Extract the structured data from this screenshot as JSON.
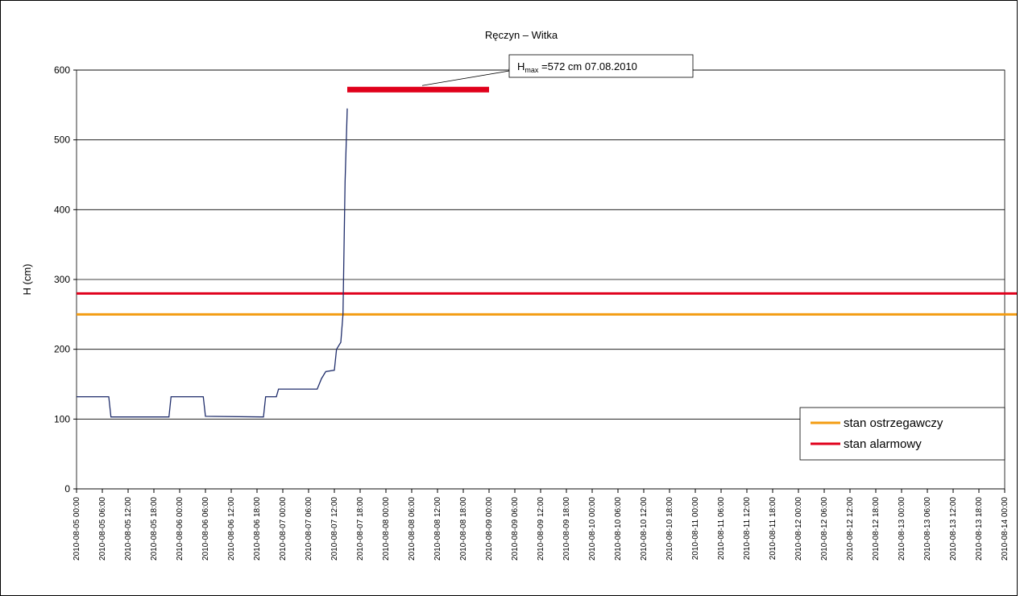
{
  "chart_data": {
    "type": "line",
    "title": "Ręczyn – Witka",
    "y_label": "H (cm)",
    "ylim": [
      0,
      600
    ],
    "yticks": [
      0,
      100,
      200,
      300,
      400,
      500,
      600
    ],
    "grid": true,
    "xlim": [
      "2010-08-05 00:00",
      "2010-08-14 00:00"
    ],
    "xticks": [
      "2010-08-05 00:00",
      "2010-08-05 06:00",
      "2010-08-05 12:00",
      "2010-08-05 18:00",
      "2010-08-06 00:00",
      "2010-08-06 06:00",
      "2010-08-06 12:00",
      "2010-08-06 18:00",
      "2010-08-07 00:00",
      "2010-08-07 06:00",
      "2010-08-07 12:00",
      "2010-08-07 18:00",
      "2010-08-08 00:00",
      "2010-08-08 06:00",
      "2010-08-08 12:00",
      "2010-08-08 18:00",
      "2010-08-09 00:00",
      "2010-08-09 06:00",
      "2010-08-09 12:00",
      "2010-08-09 18:00",
      "2010-08-10 00:00",
      "2010-08-10 06:00",
      "2010-08-10 12:00",
      "2010-08-10 18:00",
      "2010-08-11 00:00",
      "2010-08-11 06:00",
      "2010-08-11 12:00",
      "2010-08-11 18:00",
      "2010-08-12 00:00",
      "2010-08-12 06:00",
      "2010-08-12 12:00",
      "2010-08-12 18:00",
      "2010-08-13 00:00",
      "2010-08-13 06:00",
      "2010-08-13 12:00",
      "2010-08-13 18:00",
      "2010-08-14 00:00"
    ],
    "series": [
      {
        "color": "#1f2d6b",
        "x": [
          "2010-08-05 00:00",
          "2010-08-05 07:30",
          "2010-08-05 08:00",
          "2010-08-05 21:30",
          "2010-08-05 22:00",
          "2010-08-06 05:30",
          "2010-08-06 06:00",
          "2010-08-06 19:30",
          "2010-08-06 20:00",
          "2010-08-06 22:30",
          "2010-08-06 23:00",
          "2010-08-07 08:00",
          "2010-08-07 09:00",
          "2010-08-07 10:00",
          "2010-08-07 12:00",
          "2010-08-07 12:30",
          "2010-08-07 13:30",
          "2010-08-07 14:00",
          "2010-08-07 14:30",
          "2010-08-07 15:00"
        ],
        "values": [
          132,
          132,
          103,
          103,
          132,
          132,
          104,
          103,
          132,
          132,
          143,
          143,
          158,
          168,
          170,
          200,
          210,
          250,
          440,
          545
        ]
      }
    ],
    "reference_lines": [
      {
        "name": "stan ostrzegawczy",
        "value": 250,
        "color": "#f39c12"
      },
      {
        "name": "stan alarmowy",
        "value": 280,
        "color": "#e0001b"
      }
    ],
    "legend": "lower right",
    "hmax_marker": {
      "value": 572,
      "x": [
        "2010-08-07 15:00",
        "2010-08-09 00:00"
      ],
      "color": "#e0001b"
    },
    "annotation": {
      "main": "H",
      "subscript": "max",
      "text": " =572 cm 07.08.2010"
    }
  }
}
